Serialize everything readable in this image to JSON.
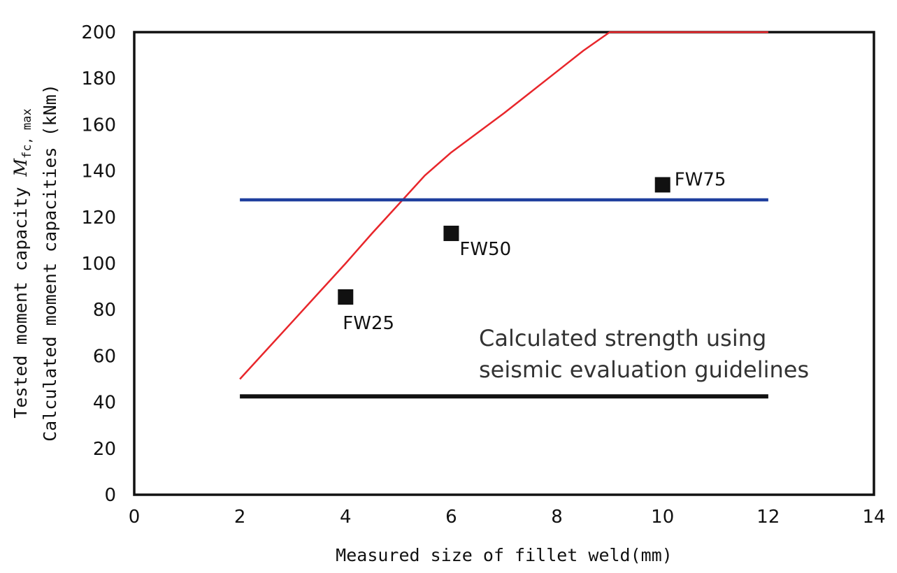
{
  "chart_data": {
    "type": "line",
    "xlabel": "Measured size of fillet weld(mm)",
    "ylabel_line1_prefix": "Tested moment capacity ",
    "ylabel_line1_symbol": "M",
    "ylabel_line1_subscript": "fc, max",
    "ylabel_line2": "Calculated moment capacities (kNm)",
    "xlim": [
      0,
      14
    ],
    "ylim": [
      0,
      200
    ],
    "x_ticks": [
      0,
      2,
      4,
      6,
      8,
      10,
      12,
      14
    ],
    "y_ticks": [
      0,
      20,
      40,
      60,
      80,
      100,
      120,
      140,
      160,
      180,
      200
    ],
    "grid": false,
    "series": [
      {
        "kind": "line",
        "color": "#e8262b",
        "x": [
          2,
          2.5,
          3,
          3.5,
          4,
          4.5,
          5,
          5.5,
          6,
          6.5,
          7,
          7.5,
          8,
          8.5,
          9,
          9.5,
          10,
          10.5,
          11,
          11.5,
          12
        ],
        "y": [
          50,
          62.5,
          75,
          87.5,
          100,
          113,
          125.5,
          138,
          148,
          156.5,
          165,
          174,
          183,
          192,
          200,
          200,
          200,
          200,
          200,
          200,
          200
        ]
      },
      {
        "kind": "line",
        "color": "#1f3f9e",
        "x": [
          2,
          12
        ],
        "y": [
          127.5,
          127.5
        ]
      },
      {
        "kind": "line",
        "color": "#111111",
        "x": [
          2,
          12
        ],
        "y": [
          42.5,
          42.5
        ]
      }
    ],
    "points": [
      {
        "label": "FW25",
        "x": 4,
        "y": 85.5
      },
      {
        "label": "FW50",
        "x": 6,
        "y": 113
      },
      {
        "label": "FW75",
        "x": 10,
        "y": 134
      }
    ],
    "annotation": {
      "line1": "Calculated strength using",
      "line2": "seismic evaluation guidelines"
    }
  }
}
